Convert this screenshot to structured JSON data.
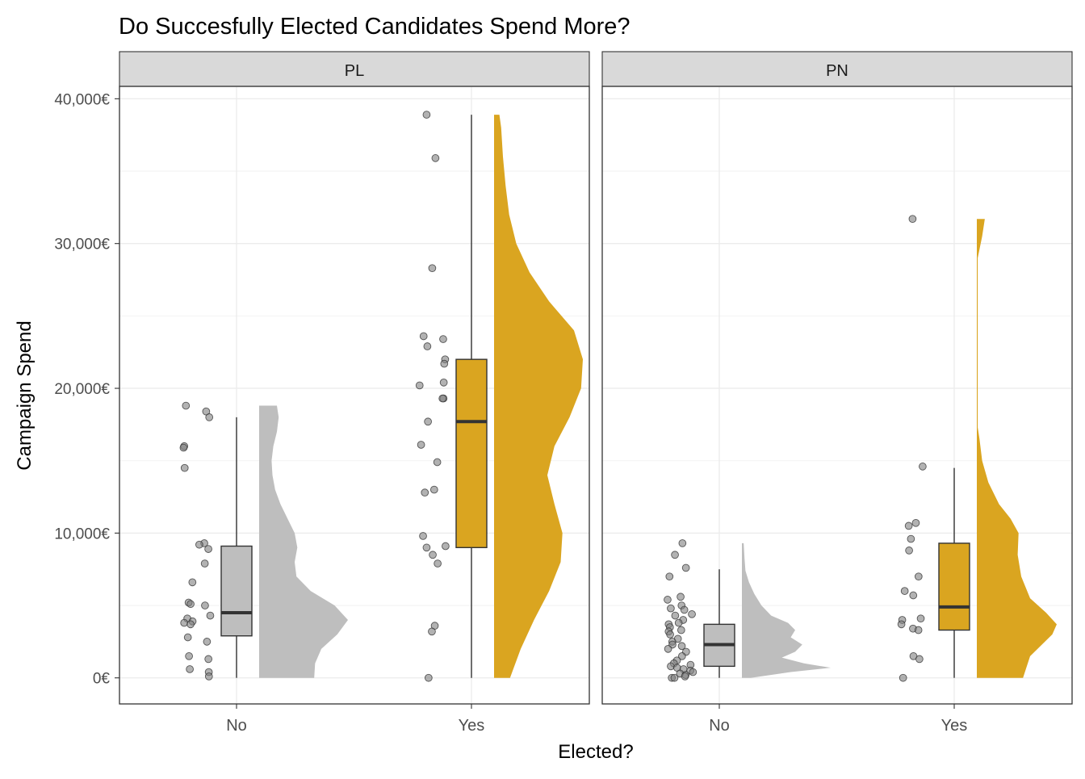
{
  "chart_data": {
    "type": "raincloud",
    "title": "Do Succesfully Elected Candidates Spend More?",
    "xlabel": "Elected?",
    "ylabel": "Campaign Spend",
    "categories": [
      "No",
      "Yes"
    ],
    "y_ticks": [
      0,
      10000,
      20000,
      30000,
      40000
    ],
    "y_tick_labels": [
      "0€",
      "10,000€",
      "20,000€",
      "30,000€",
      "40,000€"
    ],
    "ylim": [
      -1800,
      40800
    ],
    "grid": true,
    "colors": {
      "No": "#bebebe",
      "Yes": "#daa520",
      "point": "#7f7f7f",
      "strip": "#d9d9d9",
      "box_line": "#333333"
    },
    "facets": [
      {
        "label": "PL",
        "groups": {
          "No": {
            "box": {
              "lower_whisker": 0,
              "q1": 2900,
              "median": 4500,
              "q3": 9100,
              "upper_whisker": 18000
            },
            "points": [
              18800,
              18400,
              18000,
              16000,
              15900,
              14500,
              9300,
              9200,
              8900,
              7900,
              6600,
              5200,
              5100,
              5000,
              4300,
              4100,
              3900,
              3800,
              3700,
              2800,
              2500,
              1500,
              1300,
              600,
              400,
              100
            ],
            "density": [
              [
                0,
                0.62
              ],
              [
                1000,
                0.63
              ],
              [
                2000,
                0.7
              ],
              [
                3000,
                0.88
              ],
              [
                4000,
                1.0
              ],
              [
                5000,
                0.85
              ],
              [
                6000,
                0.58
              ],
              [
                7000,
                0.42
              ],
              [
                8000,
                0.4
              ],
              [
                9000,
                0.43
              ],
              [
                10000,
                0.4
              ],
              [
                11000,
                0.32
              ],
              [
                12000,
                0.24
              ],
              [
                13000,
                0.18
              ],
              [
                14000,
                0.15
              ],
              [
                15000,
                0.14
              ],
              [
                16000,
                0.16
              ],
              [
                17000,
                0.2
              ],
              [
                18000,
                0.22
              ],
              [
                18800,
                0.2
              ]
            ]
          },
          "Yes": {
            "box": {
              "lower_whisker": 0,
              "q1": 9000,
              "median": 17700,
              "q3": 22000,
              "upper_whisker": 38900
            },
            "points": [
              38900,
              35900,
              28300,
              23600,
              23400,
              22900,
              22000,
              21700,
              20400,
              20200,
              19300,
              19300,
              17700,
              16100,
              14900,
              13000,
              12800,
              9800,
              9100,
              9000,
              8500,
              7900,
              3600,
              3200,
              0
            ],
            "density": [
              [
                0,
                0.18
              ],
              [
                2000,
                0.3
              ],
              [
                4000,
                0.45
              ],
              [
                6000,
                0.62
              ],
              [
                8000,
                0.75
              ],
              [
                10000,
                0.77
              ],
              [
                12000,
                0.68
              ],
              [
                14000,
                0.6
              ],
              [
                16000,
                0.68
              ],
              [
                18000,
                0.85
              ],
              [
                20000,
                0.98
              ],
              [
                22000,
                1.0
              ],
              [
                24000,
                0.9
              ],
              [
                26000,
                0.62
              ],
              [
                28000,
                0.4
              ],
              [
                30000,
                0.25
              ],
              [
                32000,
                0.17
              ],
              [
                34000,
                0.13
              ],
              [
                36000,
                0.1
              ],
              [
                38000,
                0.08
              ],
              [
                38900,
                0.06
              ]
            ]
          }
        }
      },
      {
        "label": "PN",
        "groups": {
          "No": {
            "box": {
              "lower_whisker": 0,
              "q1": 800,
              "median": 2300,
              "q3": 3700,
              "upper_whisker": 7500
            },
            "points": [
              9300,
              8500,
              7600,
              7000,
              5600,
              5400,
              5000,
              4800,
              4700,
              4400,
              4300,
              4000,
              3800,
              3700,
              3500,
              3300,
              3200,
              3000,
              2700,
              2500,
              2300,
              2200,
              2000,
              1800,
              1500,
              1200,
              1000,
              900,
              800,
              700,
              600,
              500,
              400,
              300,
              200,
              100,
              0,
              0
            ],
            "density": [
              [
                0,
                0.1
              ],
              [
                400,
                0.55
              ],
              [
                700,
                1.0
              ],
              [
                1000,
                0.7
              ],
              [
                1400,
                0.45
              ],
              [
                1800,
                0.6
              ],
              [
                2300,
                0.68
              ],
              [
                2800,
                0.55
              ],
              [
                3300,
                0.6
              ],
              [
                3800,
                0.52
              ],
              [
                4300,
                0.33
              ],
              [
                5000,
                0.22
              ],
              [
                5800,
                0.14
              ],
              [
                6600,
                0.08
              ],
              [
                7400,
                0.04
              ],
              [
                8200,
                0.03
              ],
              [
                9300,
                0.02
              ]
            ]
          },
          "Yes": {
            "box": {
              "lower_whisker": 0,
              "q1": 3300,
              "median": 4900,
              "q3": 9300,
              "upper_whisker": 14500
            },
            "points": [
              31700,
              14600,
              10700,
              10500,
              9600,
              8800,
              7000,
              6000,
              5700,
              4100,
              4000,
              3700,
              3400,
              3300,
              1500,
              1300,
              0
            ],
            "density": [
              [
                0,
                0.52
              ],
              [
                1500,
                0.6
              ],
              [
                3000,
                0.85
              ],
              [
                3700,
                0.9
              ],
              [
                4500,
                0.78
              ],
              [
                5500,
                0.6
              ],
              [
                7000,
                0.5
              ],
              [
                8500,
                0.46
              ],
              [
                10000,
                0.47
              ],
              [
                11000,
                0.38
              ],
              [
                12000,
                0.25
              ],
              [
                13500,
                0.13
              ],
              [
                15000,
                0.06
              ],
              [
                16500,
                0.03
              ],
              [
                17300,
                0.01
              ],
              [
                29000,
                0.01
              ],
              [
                30500,
                0.06
              ],
              [
                31700,
                0.09
              ]
            ]
          }
        }
      }
    ]
  }
}
